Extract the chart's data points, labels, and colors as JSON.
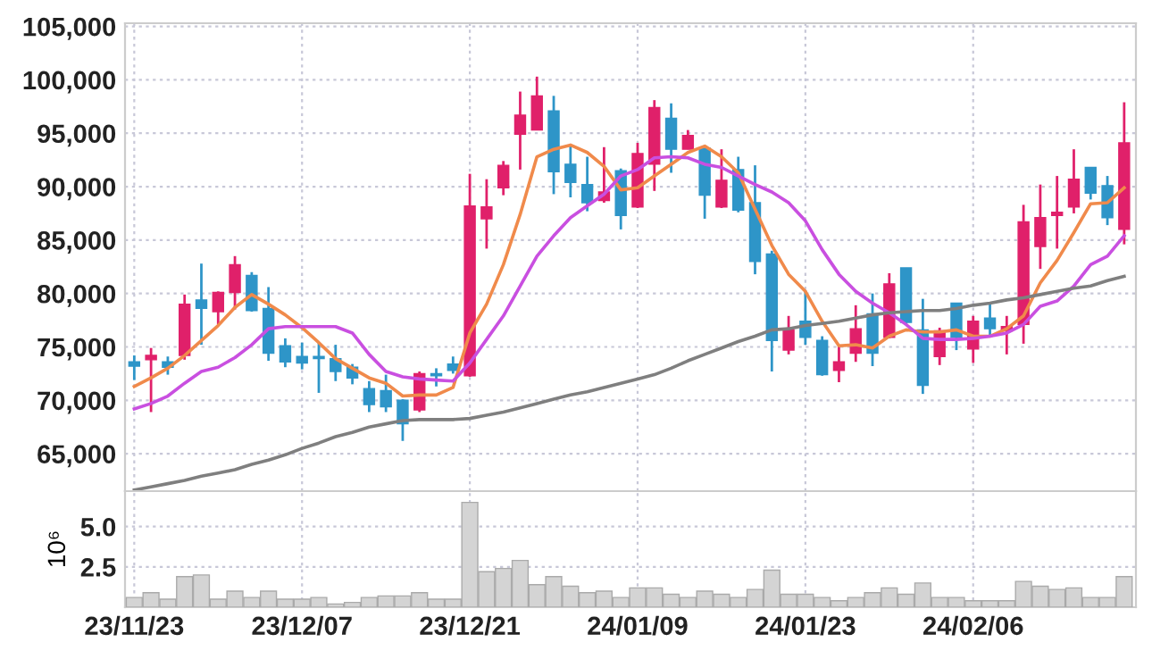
{
  "chart_data": [
    {
      "type": "candlestick",
      "categories": [
        null,
        null,
        null,
        null,
        null,
        null,
        null,
        null,
        null,
        null,
        null,
        null,
        null,
        null,
        null,
        null,
        null,
        null,
        null,
        null,
        null,
        null,
        null,
        null,
        null,
        null,
        null,
        null,
        null,
        null,
        null,
        null,
        null,
        null,
        null,
        null,
        null,
        null,
        null,
        null,
        null,
        null,
        null,
        null,
        null,
        null,
        null,
        null,
        null,
        null,
        null,
        null,
        null,
        null,
        null,
        null,
        null,
        null,
        null,
        null
      ],
      "ohlc": [
        [
          73600,
          74200,
          71900,
          73200
        ],
        [
          73800,
          74900,
          68900,
          74200
        ],
        [
          73600,
          74100,
          72400,
          73100
        ],
        [
          74200,
          79900,
          73800,
          79000
        ],
        [
          79400,
          82800,
          75200,
          78600
        ],
        [
          78300,
          80200,
          77100,
          80100
        ],
        [
          80100,
          83500,
          78500,
          82700
        ],
        [
          81700,
          82000,
          78300,
          78400
        ],
        [
          78600,
          80600,
          73700,
          74400
        ],
        [
          75100,
          75800,
          73100,
          73600
        ],
        [
          74100,
          75400,
          72900,
          73500
        ],
        [
          74100,
          75400,
          70700,
          73900
        ],
        [
          73900,
          75200,
          71800,
          72700
        ],
        [
          73100,
          73400,
          71500,
          72100
        ],
        [
          71100,
          71800,
          68900,
          69600
        ],
        [
          70900,
          72400,
          68900,
          69400
        ],
        [
          70000,
          70100,
          66200,
          67800
        ],
        [
          69100,
          72700,
          68900,
          72500
        ],
        [
          72500,
          73000,
          71300,
          72300
        ],
        [
          73400,
          74100,
          72500,
          72800
        ],
        [
          72300,
          91200,
          72200,
          88200
        ],
        [
          87000,
          90700,
          84200,
          88100
        ],
        [
          89900,
          92400,
          89200,
          92000
        ],
        [
          94900,
          98900,
          91600,
          96700
        ],
        [
          95300,
          100300,
          95300,
          98500
        ],
        [
          97100,
          98500,
          89300,
          91400
        ],
        [
          92100,
          93800,
          89000,
          90400
        ],
        [
          90200,
          92800,
          87700,
          88500
        ],
        [
          88700,
          93700,
          88500,
          89500
        ],
        [
          91500,
          91700,
          86000,
          87300
        ],
        [
          88100,
          94100,
          88000,
          93100
        ],
        [
          92100,
          98100,
          89600,
          97400
        ],
        [
          96400,
          97800,
          91300,
          93500
        ],
        [
          93500,
          95300,
          93500,
          94800
        ],
        [
          93600,
          93800,
          87000,
          89200
        ],
        [
          88100,
          93500,
          88000,
          90600
        ],
        [
          91600,
          92800,
          87600,
          87800
        ],
        [
          88500,
          92000,
          81800,
          83000
        ],
        [
          83700,
          84000,
          72700,
          75600
        ],
        [
          74700,
          77900,
          74300,
          76600
        ],
        [
          77400,
          80300,
          75200,
          75900
        ],
        [
          75600,
          76000,
          72300,
          72400
        ],
        [
          72800,
          75100,
          71700,
          73600
        ],
        [
          74400,
          78900,
          73600,
          76700
        ],
        [
          78100,
          80000,
          73200,
          74400
        ],
        [
          75900,
          81900,
          75800,
          80900
        ],
        [
          82400,
          82400,
          77100,
          77300
        ],
        [
          76600,
          79500,
          70600,
          71400
        ],
        [
          74100,
          76800,
          73300,
          76500
        ],
        [
          79100,
          79100,
          74700,
          75900
        ],
        [
          74800,
          77900,
          73500,
          77400
        ],
        [
          77700,
          79100,
          76000,
          76700
        ],
        [
          76500,
          77900,
          74300,
          76900
        ],
        [
          77100,
          88300,
          75300,
          86700
        ],
        [
          84400,
          90200,
          82300,
          87100
        ],
        [
          87300,
          91000,
          84200,
          87600
        ],
        [
          88100,
          93500,
          87500,
          90700
        ],
        [
          91800,
          91800,
          88800,
          89400
        ],
        [
          90100,
          91000,
          86400,
          87100
        ],
        [
          86000,
          97900,
          84600,
          94100
        ]
      ],
      "colors": [
        "#2e95c8",
        "#e0206a",
        "#2e95c8",
        "#e0206a",
        "#2e95c8",
        "#e0206a",
        "#e0206a",
        "#2e95c8",
        "#2e95c8",
        "#2e95c8",
        "#2e95c8",
        "#2e95c8",
        "#2e95c8",
        "#2e95c8",
        "#2e95c8",
        "#2e95c8",
        "#2e95c8",
        "#e0206a",
        "#2e95c8",
        "#2e95c8",
        "#e0206a",
        "#e0206a",
        "#e0206a",
        "#e0206a",
        "#e0206a",
        "#2e95c8",
        "#2e95c8",
        "#2e95c8",
        "#e0206a",
        "#2e95c8",
        "#e0206a",
        "#e0206a",
        "#2e95c8",
        "#e0206a",
        "#2e95c8",
        "#e0206a",
        "#2e95c8",
        "#2e95c8",
        "#2e95c8",
        "#e0206a",
        "#2e95c8",
        "#2e95c8",
        "#e0206a",
        "#e0206a",
        "#2e95c8",
        "#e0206a",
        "#2e95c8",
        "#2e95c8",
        "#e0206a",
        "#2e95c8",
        "#e0206a",
        "#2e95c8",
        "#e0206a",
        "#e0206a",
        "#e0206a",
        "#e0206a",
        "#e0206a",
        "#2e95c8",
        "#2e95c8",
        "#e0206a"
      ],
      "series": [
        {
          "type": "line",
          "color": "#f08a4b",
          "values": [
            71300,
            72100,
            73000,
            74200,
            75600,
            77000,
            78700,
            79900,
            79000,
            78000,
            76800,
            75400,
            73900,
            73000,
            72100,
            71600,
            70400,
            70500,
            70500,
            71200,
            76300,
            79000,
            82700,
            87400,
            92800,
            93500,
            93900,
            93200,
            91900,
            89700,
            89900,
            91000,
            92100,
            93200,
            93800,
            92800,
            91300,
            87900,
            84500,
            81800,
            80200,
            77400,
            75100,
            75200,
            74900,
            76000,
            76600,
            76400,
            76400,
            76600,
            76000,
            76000,
            76700,
            77900,
            81000,
            83100,
            85700,
            88400,
            88500,
            89900
          ]
        },
        {
          "type": "line",
          "color": "#c94fe0",
          "values": [
            69200,
            69700,
            70400,
            71600,
            72700,
            73100,
            74000,
            75200,
            76700,
            76900,
            76900,
            76900,
            76900,
            76300,
            74300,
            72700,
            72200,
            72000,
            71900,
            71800,
            73500,
            75700,
            77900,
            80700,
            83500,
            85400,
            87100,
            88200,
            89300,
            91000,
            91600,
            92700,
            92800,
            92700,
            92100,
            91800,
            91000,
            90200,
            89500,
            88500,
            86800,
            84100,
            81800,
            80200,
            79100,
            78200,
            77100,
            75800,
            75700,
            75700,
            75800,
            76000,
            76300,
            77100,
            78800,
            79300,
            80700,
            82700,
            83500,
            85400
          ]
        },
        {
          "type": "line",
          "color": "#7f7f7f",
          "values": [
            61600,
            61900,
            62200,
            62500,
            62900,
            63200,
            63500,
            64000,
            64400,
            64900,
            65500,
            66000,
            66600,
            67000,
            67500,
            67800,
            68100,
            68200,
            68200,
            68200,
            68300,
            68600,
            68900,
            69300,
            69700,
            70100,
            70500,
            70800,
            71200,
            71600,
            72000,
            72400,
            73000,
            73700,
            74300,
            74900,
            75500,
            76000,
            76600,
            76700,
            77000,
            77200,
            77400,
            77700,
            78000,
            78200,
            78300,
            78400,
            78400,
            78600,
            78900,
            79100,
            79400,
            79600,
            79900,
            80200,
            80500,
            80700,
            81200,
            81600
          ]
        }
      ],
      "ylim": [
        61500,
        105300
      ],
      "yticks": [
        {
          "value": 65000,
          "label": "65,000"
        },
        {
          "value": 70000,
          "label": "70,000"
        },
        {
          "value": 75000,
          "label": "75,000"
        },
        {
          "value": 80000,
          "label": "80,000"
        },
        {
          "value": 85000,
          "label": "85,000"
        },
        {
          "value": 90000,
          "label": "90,000"
        },
        {
          "value": 95000,
          "label": "95,000"
        },
        {
          "value": 100000,
          "label": "100,000"
        },
        {
          "value": 105000,
          "label": "105,000"
        }
      ],
      "grid": true,
      "tick_labels": "y"
    },
    {
      "type": "bar",
      "categories": [
        "23/11/23",
        null,
        null,
        null,
        null,
        null,
        null,
        null,
        null,
        null,
        "23/12/07",
        null,
        null,
        null,
        null,
        null,
        null,
        null,
        null,
        null,
        "23/12/21",
        null,
        null,
        null,
        null,
        null,
        null,
        null,
        null,
        null,
        "24/01/09",
        null,
        null,
        null,
        null,
        null,
        null,
        null,
        null,
        null,
        "24/01/23",
        null,
        null,
        null,
        null,
        null,
        null,
        null,
        null,
        null,
        "24/02/06",
        null,
        null,
        null,
        null,
        null,
        null,
        null,
        null,
        null
      ],
      "values": [
        0.6,
        0.9,
        0.5,
        1.9,
        2.0,
        0.5,
        1.0,
        0.6,
        1.0,
        0.5,
        0.5,
        0.6,
        0.2,
        0.3,
        0.6,
        0.7,
        0.7,
        0.9,
        0.5,
        0.5,
        6.5,
        2.2,
        2.4,
        2.9,
        1.4,
        1.9,
        1.3,
        0.9,
        1.0,
        0.6,
        1.2,
        1.2,
        0.8,
        0.6,
        1.0,
        0.8,
        0.6,
        1.1,
        2.3,
        0.8,
        0.8,
        0.6,
        0.4,
        0.6,
        0.9,
        1.2,
        0.8,
        1.5,
        0.6,
        0.6,
        0.4,
        0.4,
        0.4,
        1.6,
        1.3,
        1.1,
        1.2,
        0.6,
        0.6,
        1.9
      ],
      "color": "#d4d4d4",
      "ylabel": "10⁶",
      "ylim": [
        0,
        7.2
      ],
      "yticks": [
        {
          "value": 2.5,
          "label": "2.5"
        },
        {
          "value": 5,
          "label": "5.0"
        }
      ],
      "grid": true
    }
  ]
}
